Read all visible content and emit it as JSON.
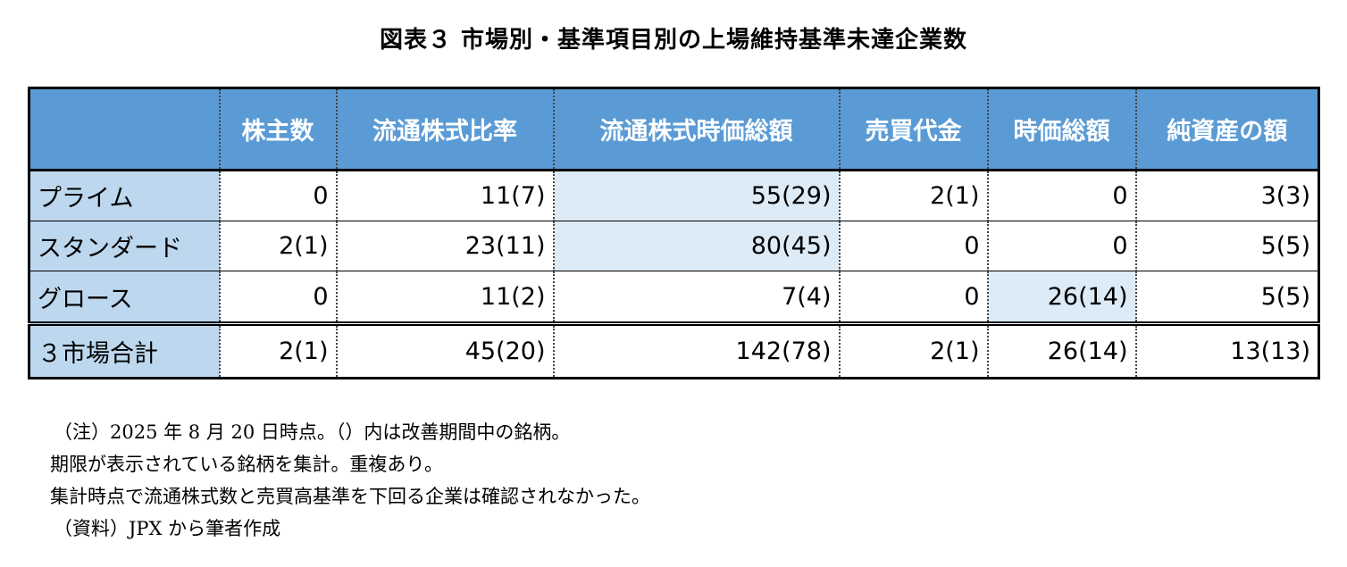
{
  "title": "図表３ 市場別・基準項目別の上場維持基準未達企業数",
  "chart_data": {
    "type": "table",
    "columns": [
      "",
      "株主数",
      "流通株式比率",
      "流通株式時価総額",
      "売買代金",
      "時価総額",
      "純資産の額"
    ],
    "rows": [
      {
        "label": "プライム",
        "cells": [
          "0",
          "11(7)",
          "55(29)",
          "2(1)",
          "0",
          "3(3)"
        ],
        "highlight": [
          false,
          false,
          true,
          false,
          false,
          false
        ]
      },
      {
        "label": "スタンダード",
        "cells": [
          "2(1)",
          "23(11)",
          "80(45)",
          "0",
          "0",
          "5(5)"
        ],
        "highlight": [
          false,
          false,
          true,
          false,
          false,
          false
        ]
      },
      {
        "label": "グロース",
        "cells": [
          "0",
          "11(2)",
          "7(4)",
          "0",
          "26(14)",
          "5(5)"
        ],
        "highlight": [
          false,
          false,
          false,
          false,
          true,
          false
        ]
      }
    ],
    "total": {
      "label": "３市場合計",
      "cells": [
        "2(1)",
        "45(20)",
        "142(78)",
        "2(1)",
        "26(14)",
        "13(13)"
      ]
    }
  },
  "notes": [
    "（注）2025 年 8 月 20 日時点。（）内は改善期間中の銘柄。",
    "期限が表示されている銘柄を集計。重複あり。",
    "集計時点で流通株式数と売買高基準を下回る企業は確認されなかった。",
    "（資料）JPX から筆者作成"
  ],
  "colors": {
    "header": "#5b9bd5",
    "rowhead": "#bdd7ee",
    "highlight": "#ddebf7"
  }
}
